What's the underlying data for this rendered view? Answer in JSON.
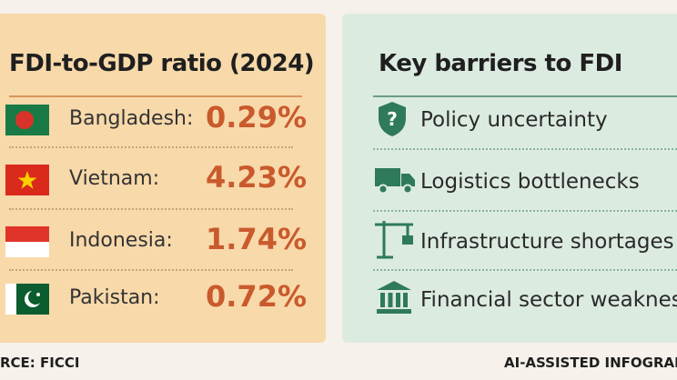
{
  "left_panel": {
    "title": "FDI-to-GDP ratio (2024)",
    "rows": [
      {
        "country": "Bangladesh:",
        "value": "0.29%"
      },
      {
        "country": "Vietnam:",
        "value": "4.23%"
      },
      {
        "country": "Indonesia:",
        "value": "1.74%"
      },
      {
        "country": "Pakistan:",
        "value": "0.72%"
      }
    ]
  },
  "right_panel": {
    "title": "Key barriers to FDI",
    "items": [
      "Policy uncertainty",
      "Logistics bottlenecks",
      "Infrastructure shortages",
      "Financial sector weaknesse"
    ]
  },
  "footer": {
    "source": "RCE: FICCI",
    "credit": "AI-ASSISTED INFOGRAP"
  }
}
